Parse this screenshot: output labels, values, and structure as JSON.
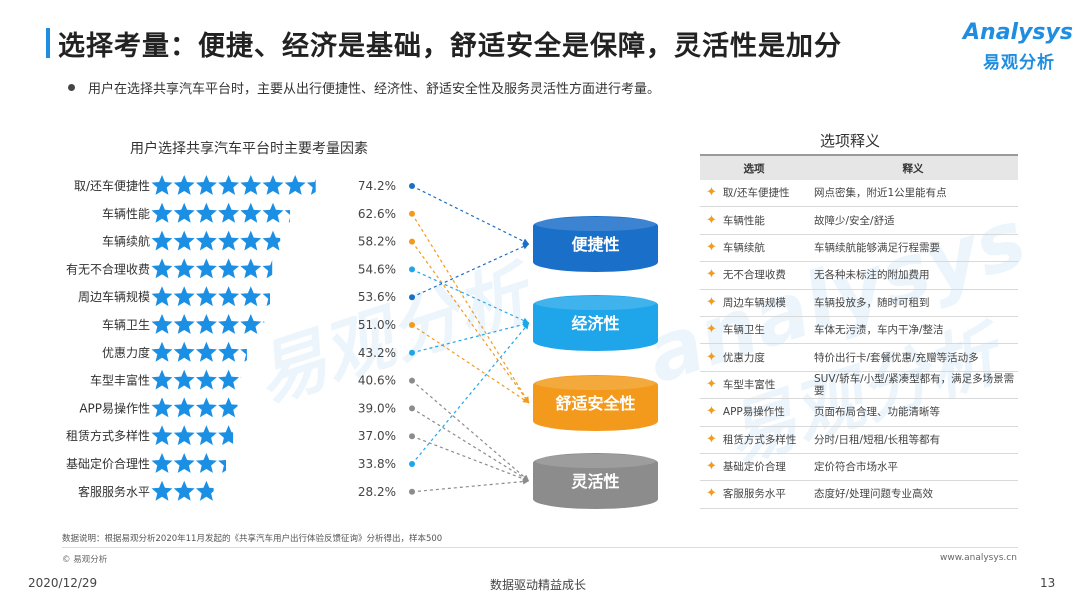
{
  "header": {
    "title": "选择考量：便捷、经济是基础，舒适安全是保障，灵活性是加分",
    "subtitle": "用户在选择共享汽车平台时，主要从出行便捷性、经济性、舒适安全性及服务灵活性方面进行考量。",
    "logo_en": "Analysys",
    "logo_cn": "易观分析"
  },
  "watermark": {
    "line1": "易观分析",
    "line2": "analysys",
    "line3": "易观分析"
  },
  "chart_data": {
    "type": "bar",
    "title": "用户选择共享汽车平台时主要考量因素",
    "categories": [
      "取/还车便捷性",
      "车辆性能",
      "车辆续航",
      "有无不合理收费",
      "周边车辆规模",
      "车辆卫生",
      "优惠力度",
      "车型丰富性",
      "APP易操作性",
      "租赁方式多样性",
      "基础定价合理性",
      "客服服务水平"
    ],
    "values": [
      74.2,
      62.6,
      58.2,
      54.6,
      53.6,
      51.0,
      43.2,
      40.6,
      39.0,
      37.0,
      33.8,
      28.2
    ],
    "value_labels": [
      "74.2%",
      "62.6%",
      "58.2%",
      "54.6%",
      "53.6%",
      "51.0%",
      "43.2%",
      "40.6%",
      "39.0%",
      "37.0%",
      "33.8%",
      "28.2%"
    ],
    "unit": "%",
    "xlim": [
      0,
      80
    ],
    "marker": "star",
    "groups": [
      {
        "name": "便捷性",
        "color": "#1a6fc9"
      },
      {
        "name": "经济性",
        "color": "#1fa6ea"
      },
      {
        "name": "舒适安全性",
        "color": "#f39a1c"
      },
      {
        "name": "灵活性",
        "color": "#8c8c8c"
      }
    ],
    "links": [
      {
        "from": 0,
        "to": 0,
        "color": "#1a6fc9"
      },
      {
        "from": 1,
        "to": 2,
        "color": "#f39a1c"
      },
      {
        "from": 2,
        "to": 2,
        "color": "#f39a1c"
      },
      {
        "from": 3,
        "to": 1,
        "color": "#1fa6ea"
      },
      {
        "from": 4,
        "to": 0,
        "color": "#1a6fc9"
      },
      {
        "from": 5,
        "to": 2,
        "color": "#f39a1c"
      },
      {
        "from": 6,
        "to": 1,
        "color": "#1fa6ea"
      },
      {
        "from": 7,
        "to": 3,
        "color": "#8c8c8c"
      },
      {
        "from": 8,
        "to": 3,
        "color": "#8c8c8c"
      },
      {
        "from": 9,
        "to": 3,
        "color": "#8c8c8c"
      },
      {
        "from": 10,
        "to": 1,
        "color": "#1fa6ea"
      },
      {
        "from": 11,
        "to": 3,
        "color": "#8c8c8c"
      }
    ],
    "star_color": "#1b8fe4"
  },
  "table": {
    "title": "选项释义",
    "headers": [
      "选项",
      "释义"
    ],
    "rows": [
      [
        "取/还车便捷性",
        "网点密集，附近1公里能有点"
      ],
      [
        "车辆性能",
        "故障少/安全/舒适"
      ],
      [
        "车辆续航",
        "车辆续航能够满足行程需要"
      ],
      [
        "无不合理收费",
        "无各种未标注的附加费用"
      ],
      [
        "周边车辆规模",
        "车辆投放多，随时可租到"
      ],
      [
        "车辆卫生",
        "车体无污渍，车内干净/整洁"
      ],
      [
        "优惠力度",
        "特价出行卡/套餐优惠/充赠等活动多"
      ],
      [
        "车型丰富性",
        "SUV/轿车/小型/紧凑型都有，满足多场景需要"
      ],
      [
        "APP易操作性",
        "页面布局合理、功能清晰等"
      ],
      [
        "租赁方式多样性",
        "分时/日租/短租/长租等都有"
      ],
      [
        "基础定价合理",
        "定价符合市场水平"
      ],
      [
        "客服服务水平",
        "态度好/处理问题专业高效"
      ]
    ],
    "row_icon": "four-point-star-icon"
  },
  "footer": {
    "note": "数据说明：根据易观分析2020年11月发起的《共享汽车用户出行体验反馈征询》分析得出，样本500",
    "copyright": "© 易观分析",
    "url": "www.analysys.cn",
    "date": "2020/12/29",
    "slogan": "数据驱动精益成长",
    "page": "13"
  }
}
